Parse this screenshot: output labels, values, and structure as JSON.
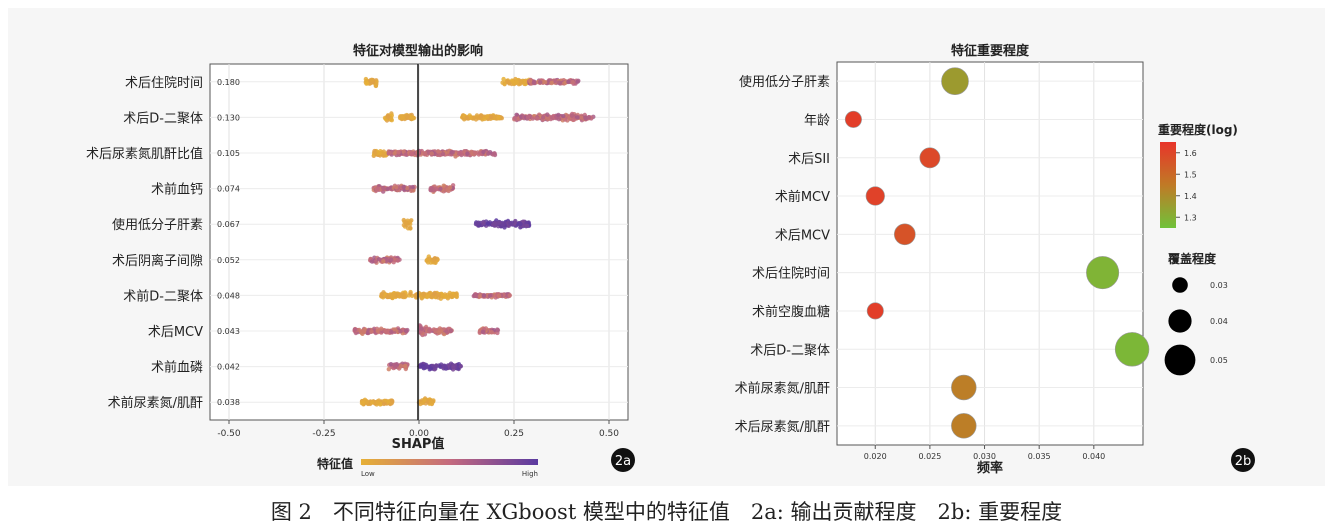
{
  "caption": "图 2　不同特征向量在 XGboost 模型中的特征值　2a: 输出贡献程度　2b: 重要程度",
  "panel_labels": {
    "a": "2a",
    "b": "2b"
  },
  "colors": {
    "low": "#e6b036",
    "mid": "#c46a7e",
    "high": "#5a3aa0",
    "bubble_high": "#e8342a",
    "bubble_mid": "#c07a26",
    "bubble_low": "#70c23a"
  },
  "chart_data": [
    {
      "type": "scatter",
      "title": "特征对模型输出的影响",
      "xlabel": "SHAP值",
      "ylabel": "",
      "xlim": [
        -0.55,
        0.55
      ],
      "xticks": [
        "-0.50",
        "-0.25",
        "0.00",
        "0.25",
        "0.50"
      ],
      "xtick_values": [
        -0.5,
        -0.25,
        0,
        0.25,
        0.5
      ],
      "grid": true,
      "colorbar": {
        "title": "特征值",
        "low": "Low",
        "high": "High"
      },
      "features": [
        {
          "name": "术后住院时间",
          "importance": "0.180",
          "clusters": [
            [
              -0.14,
              -0.11,
              0.08,
              "low"
            ],
            [
              0.22,
              0.29,
              0.04,
              "low"
            ],
            [
              0.29,
              0.42,
              0.03,
              "mid"
            ]
          ]
        },
        {
          "name": "术后D-二聚体",
          "importance": "0.130",
          "clusters": [
            [
              -0.09,
              -0.07,
              0.12,
              "low"
            ],
            [
              -0.05,
              -0.01,
              0.04,
              "low"
            ],
            [
              0.11,
              0.22,
              0.03,
              "low"
            ],
            [
              0.25,
              0.46,
              0.06,
              "mid"
            ]
          ]
        },
        {
          "name": "术后尿素氮肌酐比值",
          "importance": "0.105",
          "clusters": [
            [
              -0.12,
              -0.08,
              0.1,
              "low"
            ],
            [
              -0.08,
              0.05,
              0.05,
              "mid"
            ],
            [
              0.05,
              0.2,
              0.05,
              "mid"
            ]
          ]
        },
        {
          "name": "术前血钙",
          "importance": "0.074",
          "clusters": [
            [
              -0.12,
              -0.01,
              0.05,
              "mid"
            ],
            [
              0.03,
              0.09,
              0.08,
              "mid"
            ]
          ]
        },
        {
          "name": "使用低分子肝素",
          "importance": "0.067",
          "clusters": [
            [
              -0.04,
              -0.02,
              0.16,
              "low"
            ],
            [
              0.15,
              0.29,
              0.07,
              "high"
            ]
          ]
        },
        {
          "name": "术后阴离子间隙",
          "importance": "0.052",
          "clusters": [
            [
              -0.13,
              -0.05,
              0.05,
              "mid"
            ],
            [
              0.02,
              0.05,
              0.09,
              "low"
            ]
          ]
        },
        {
          "name": "术前D-二聚体",
          "importance": "0.048",
          "clusters": [
            [
              -0.1,
              0.02,
              0.06,
              "low"
            ],
            [
              0.02,
              0.1,
              0.06,
              "low"
            ],
            [
              0.14,
              0.24,
              0.02,
              "mid"
            ]
          ]
        },
        {
          "name": "术后MCV",
          "importance": "0.043",
          "clusters": [
            [
              -0.17,
              -0.03,
              0.04,
              "mid"
            ],
            [
              0.0,
              0.02,
              0.14,
              "mid"
            ],
            [
              0.02,
              0.09,
              0.05,
              "mid"
            ],
            [
              0.16,
              0.21,
              0.05,
              "mid"
            ]
          ]
        },
        {
          "name": "术前血磷",
          "importance": "0.042",
          "clusters": [
            [
              -0.08,
              -0.03,
              0.06,
              "mid"
            ],
            [
              0.0,
              0.11,
              0.06,
              "high"
            ]
          ]
        },
        {
          "name": "术前尿素氮/肌酐",
          "importance": "0.038",
          "clusters": [
            [
              -0.15,
              -0.07,
              0.05,
              "low"
            ],
            [
              0.0,
              0.04,
              0.08,
              "low"
            ]
          ]
        }
      ]
    },
    {
      "type": "scatter",
      "title": "特征重要程度",
      "xlabel": "频率",
      "ylabel": "",
      "xlim": [
        0.0165,
        0.0445
      ],
      "xticks": [
        "0.020",
        "0.025",
        "0.030",
        "0.035",
        "0.040"
      ],
      "xtick_values": [
        0.02,
        0.025,
        0.03,
        0.035,
        0.04
      ],
      "grid": true,
      "color_legend": {
        "title": "重要程度(log)",
        "ticks": [
          "1.6",
          "1.5",
          "1.4",
          "1.3"
        ],
        "tick_values": [
          1.6,
          1.5,
          1.4,
          1.3
        ],
        "range": [
          1.25,
          1.65
        ]
      },
      "size_legend": {
        "title": "覆盖程度",
        "labels": [
          "0.03",
          "0.04",
          "0.05"
        ],
        "values": [
          0.03,
          0.04,
          0.05
        ]
      },
      "points": [
        {
          "name": "使用低分子肝素",
          "x": 0.0273,
          "importance_log": 1.36,
          "coverage": 0.045
        },
        {
          "name": "年龄",
          "x": 0.018,
          "importance_log": 1.62,
          "coverage": 0.031
        },
        {
          "name": "术后SII",
          "x": 0.025,
          "importance_log": 1.59,
          "coverage": 0.036
        },
        {
          "name": "术前MCV",
          "x": 0.02,
          "importance_log": 1.61,
          "coverage": 0.034
        },
        {
          "name": "术后MCV",
          "x": 0.0227,
          "importance_log": 1.56,
          "coverage": 0.037
        },
        {
          "name": "术后住院时间",
          "x": 0.0408,
          "importance_log": 1.29,
          "coverage": 0.052
        },
        {
          "name": "术前空腹血糖",
          "x": 0.02,
          "importance_log": 1.62,
          "coverage": 0.031
        },
        {
          "name": "术后D-二聚体",
          "x": 0.0435,
          "importance_log": 1.28,
          "coverage": 0.054
        },
        {
          "name": "术前尿素氮/肌酐",
          "x": 0.0281,
          "importance_log": 1.44,
          "coverage": 0.042
        },
        {
          "name": "术后尿素氮/肌酐",
          "x": 0.0281,
          "importance_log": 1.44,
          "coverage": 0.042
        }
      ]
    }
  ]
}
